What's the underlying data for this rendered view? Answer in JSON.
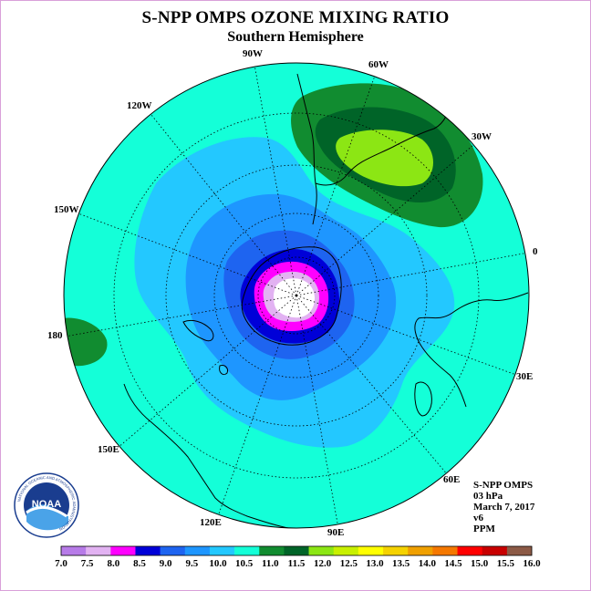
{
  "header": {
    "title": "S-NPP OMPS OZONE MIXING RATIO",
    "subtitle": "Southern Hemisphere"
  },
  "map": {
    "projection": "south-polar-stereographic",
    "colors": {
      "ocean_outline": "#000000",
      "grid": "#000000",
      "coast": "#000000"
    },
    "longitude_labels": [
      "90W",
      "60W",
      "30W",
      "0",
      "30E",
      "60E",
      "90E",
      "120E",
      "150E",
      "180",
      "150W",
      "120W"
    ]
  },
  "info": {
    "satellite": "S-NPP OMPS",
    "level": "03 hPa",
    "date": "March 7, 2017",
    "version": "v6",
    "units": "PPM"
  },
  "colorbar": {
    "labels": [
      "7.0",
      "7.5",
      "8.0",
      "8.5",
      "9.0",
      "9.5",
      "10.0",
      "10.5",
      "11.0",
      "11.5",
      "12.0",
      "12.5",
      "13.0",
      "13.5",
      "14.0",
      "14.5",
      "15.0",
      "15.5",
      "16.0"
    ],
    "colors": [
      "#b77be8",
      "#e2b2f2",
      "#ff00ff",
      "#0000d8",
      "#1e64f0",
      "#1e96ff",
      "#23c8ff",
      "#14ffd8",
      "#118c30",
      "#006428",
      "#8ce614",
      "#c8f000",
      "#ffff00",
      "#f5d200",
      "#f0a000",
      "#f57800",
      "#ff0000",
      "#c80000",
      "#8c5a46"
    ]
  },
  "logo": {
    "text": "NOAA",
    "ring_text": "NATIONAL OCEANIC AND ATMOSPHERIC ADMINISTRATION"
  }
}
